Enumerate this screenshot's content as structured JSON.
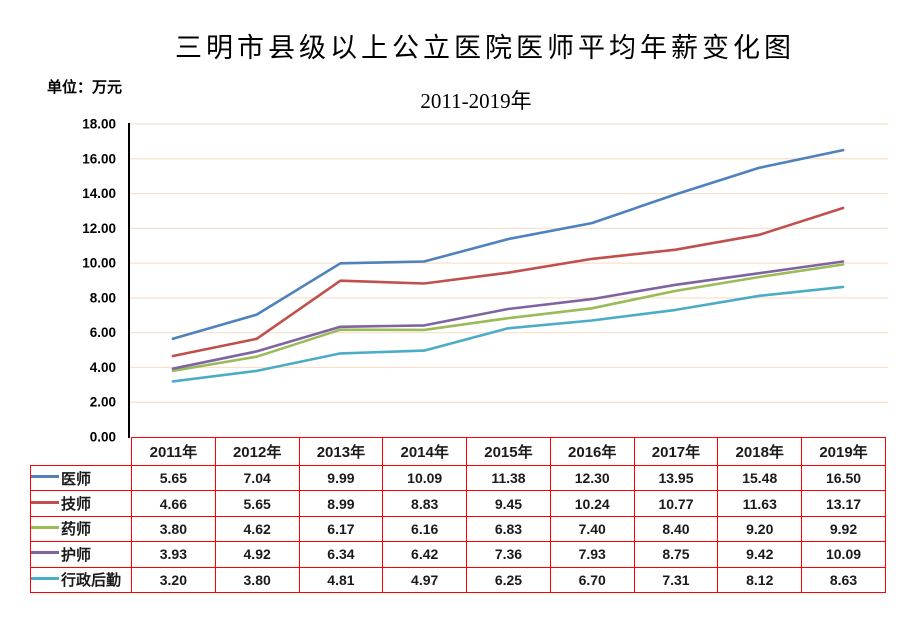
{
  "title": "三明市县级以上公立医院医师平均年薪变化图",
  "subtitle": "2011-2019年",
  "unit_label": "单位：万元",
  "colors": {
    "table_border": "#FF0000",
    "gridline": "#F8E0CB",
    "axis": "#000000",
    "text": "#1A1A1A"
  },
  "chart_data": {
    "type": "line",
    "title": "三明市县级以上公立医院医师平均年薪变化图",
    "subtitle": "2011-2019年",
    "unit": "万元",
    "categories": [
      "2011年",
      "2012年",
      "2013年",
      "2014年",
      "2015年",
      "2016年",
      "2017年",
      "2018年",
      "2019年"
    ],
    "series": [
      {
        "name": "医师",
        "color": "#4F81BD",
        "values": [
          5.65,
          7.04,
          9.99,
          10.09,
          11.38,
          12.3,
          13.95,
          15.48,
          16.5
        ]
      },
      {
        "name": "技师",
        "color": "#C0504D",
        "values": [
          4.66,
          5.65,
          8.99,
          8.83,
          9.45,
          10.24,
          10.77,
          11.63,
          13.17
        ]
      },
      {
        "name": "药师",
        "color": "#9BBB59",
        "values": [
          3.8,
          4.62,
          6.17,
          6.16,
          6.83,
          7.4,
          8.4,
          9.2,
          9.92
        ]
      },
      {
        "name": "护师",
        "color": "#8064A2",
        "values": [
          3.93,
          4.92,
          6.34,
          6.42,
          7.36,
          7.93,
          8.75,
          9.42,
          10.09
        ]
      },
      {
        "name": "行政后勤",
        "color": "#4BACC6",
        "values": [
          3.2,
          3.8,
          4.81,
          4.97,
          6.25,
          6.7,
          7.31,
          8.12,
          8.63
        ]
      }
    ],
    "ylim": [
      0,
      18
    ],
    "ytick_step": 2,
    "ytick_labels": [
      "0.00",
      "2.00",
      "4.00",
      "6.00",
      "8.00",
      "10.00",
      "12.00",
      "14.00",
      "16.00",
      "18.00"
    ],
    "grid": true,
    "legend_position": "table-left",
    "value_decimals": 2
  }
}
